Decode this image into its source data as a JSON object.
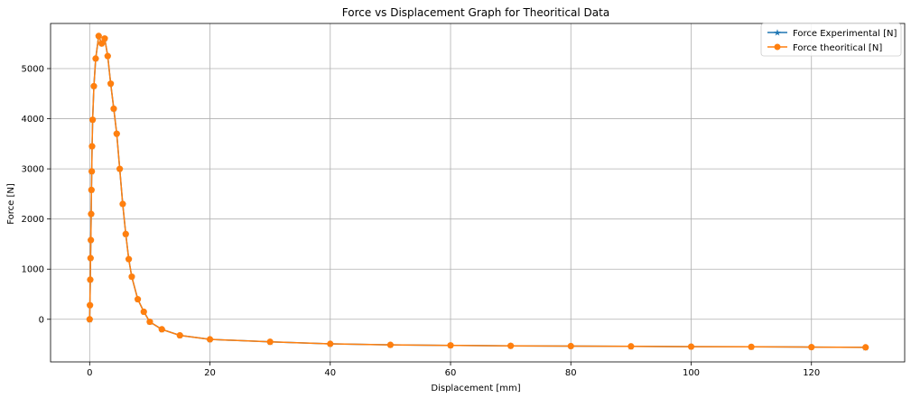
{
  "chart_data": {
    "type": "line",
    "title": "Force vs Displacement Graph for Theoritical Data",
    "xlabel": "Displacement [mm]",
    "ylabel": "Force [N]",
    "xlim": [
      -6.5,
      135.5
    ],
    "ylim": [
      -850,
      5900
    ],
    "xticks": [
      0,
      20,
      40,
      60,
      80,
      100,
      120
    ],
    "yticks": [
      0,
      1000,
      2000,
      3000,
      4000,
      5000
    ],
    "grid": true,
    "legend_position": "top-right",
    "series": [
      {
        "name": "Force Experimental [N]",
        "color": "#1f77b4",
        "marker": "star",
        "x": [
          0,
          0.05,
          0.1,
          0.15,
          0.2,
          0.25,
          0.3,
          0.35,
          0.4,
          0.5,
          0.7,
          1.0,
          1.5,
          2.0,
          2.5,
          3.0,
          3.5,
          4.0,
          4.5,
          5.0,
          5.5,
          6.0,
          6.5,
          7.0,
          8.0,
          9.0,
          10,
          12,
          15,
          20,
          30,
          40,
          50,
          60,
          70,
          80,
          90,
          100,
          110,
          120,
          129
        ],
        "y": [
          0,
          280,
          790,
          1220,
          1580,
          2100,
          2580,
          2950,
          3450,
          3980,
          4650,
          5200,
          5650,
          5500,
          5600,
          5250,
          4700,
          4200,
          3700,
          3000,
          2300,
          1700,
          1200,
          850,
          400,
          150,
          -50,
          -200,
          -320,
          -400,
          -450,
          -490,
          -510,
          -520,
          -530,
          -535,
          -540,
          -545,
          -550,
          -555,
          -560
        ]
      },
      {
        "name": "Force theoritical [N]",
        "color": "#ff7f0e",
        "marker": "circle",
        "x": [
          0,
          0.05,
          0.1,
          0.15,
          0.2,
          0.25,
          0.3,
          0.35,
          0.4,
          0.5,
          0.7,
          1.0,
          1.5,
          2.0,
          2.5,
          3.0,
          3.5,
          4.0,
          4.5,
          5.0,
          5.5,
          6.0,
          6.5,
          7.0,
          8.0,
          9.0,
          10,
          12,
          15,
          20,
          30,
          40,
          50,
          60,
          70,
          80,
          90,
          100,
          110,
          120,
          129
        ],
        "y": [
          0,
          280,
          790,
          1220,
          1580,
          2100,
          2580,
          2950,
          3450,
          3980,
          4650,
          5200,
          5650,
          5500,
          5600,
          5250,
          4700,
          4200,
          3700,
          3000,
          2300,
          1700,
          1200,
          850,
          400,
          150,
          -50,
          -200,
          -320,
          -400,
          -450,
          -490,
          -510,
          -520,
          -530,
          -535,
          -540,
          -545,
          -550,
          -555,
          -560
        ]
      }
    ]
  }
}
